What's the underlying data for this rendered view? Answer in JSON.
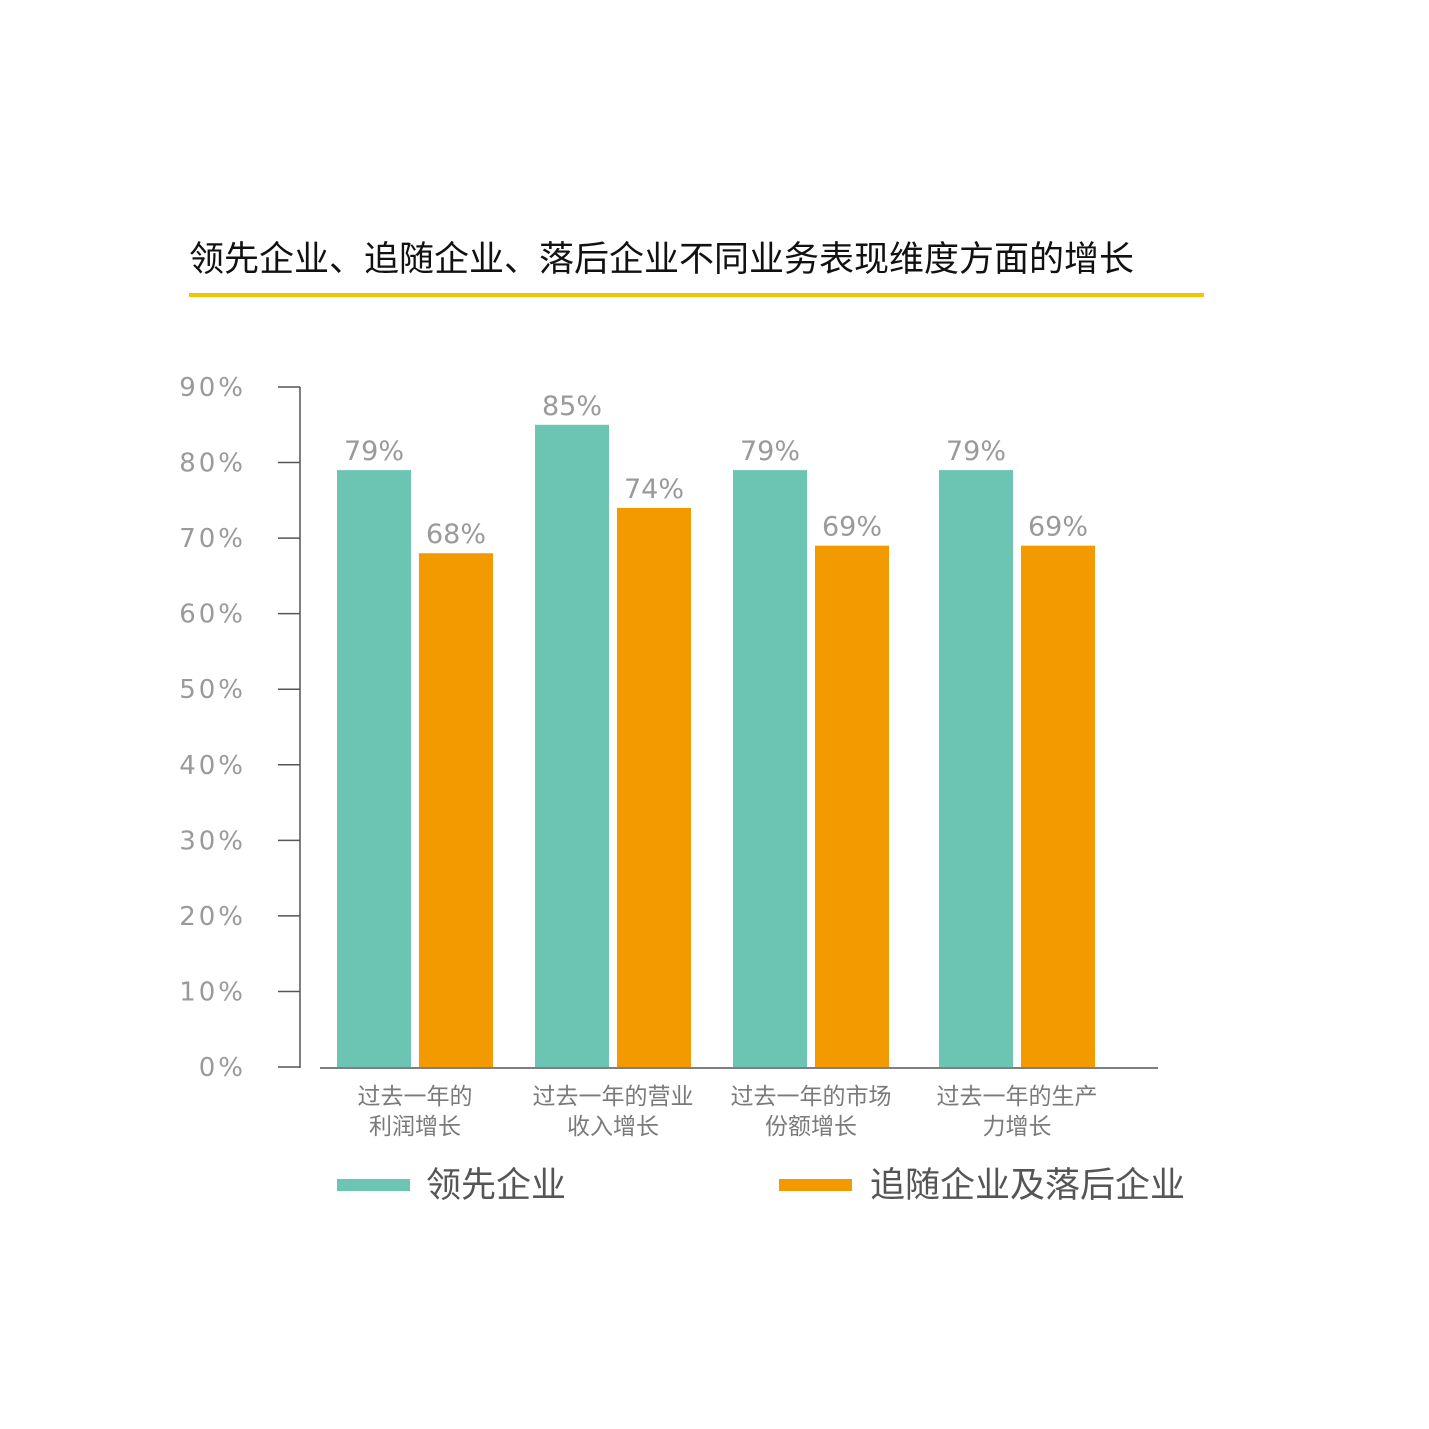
{
  "title": "领先企业、追随企业、落后企业不同业务表现维度方面的增长",
  "colors": {
    "accent_rule": "#f5c400",
    "axis": "#555555"
  },
  "chart_data": {
    "type": "bar",
    "title": "领先企业、追随企业、落后企业不同业务表现维度方面的增长",
    "categories": [
      [
        "过去一年的",
        "利润增长"
      ],
      [
        "过去一年的营业",
        "收入增长"
      ],
      [
        "过去一年的市场",
        "份额增长"
      ],
      [
        "过去一年的生产",
        "力增长"
      ]
    ],
    "series": [
      {
        "name": "领先企业",
        "color": "#6cc4b2",
        "values": [
          79,
          85,
          79,
          79
        ],
        "labels": [
          "79%",
          "85%",
          "79%",
          "79%"
        ]
      },
      {
        "name": "追随企业及落后企业",
        "color": "#f39a00",
        "values": [
          68,
          74,
          69,
          69
        ],
        "labels": [
          "68%",
          "74%",
          "69%",
          "69%"
        ]
      }
    ],
    "ylim": [
      0,
      90
    ],
    "yticks": [
      0,
      10,
      20,
      30,
      40,
      50,
      60,
      70,
      80,
      90
    ],
    "ytick_labels": [
      "0%",
      "10%",
      "20%",
      "30%",
      "40%",
      "50%",
      "60%",
      "70%",
      "80%",
      "90%"
    ],
    "xlabel": "",
    "ylabel": "",
    "grid": false,
    "legend": "bottom"
  }
}
